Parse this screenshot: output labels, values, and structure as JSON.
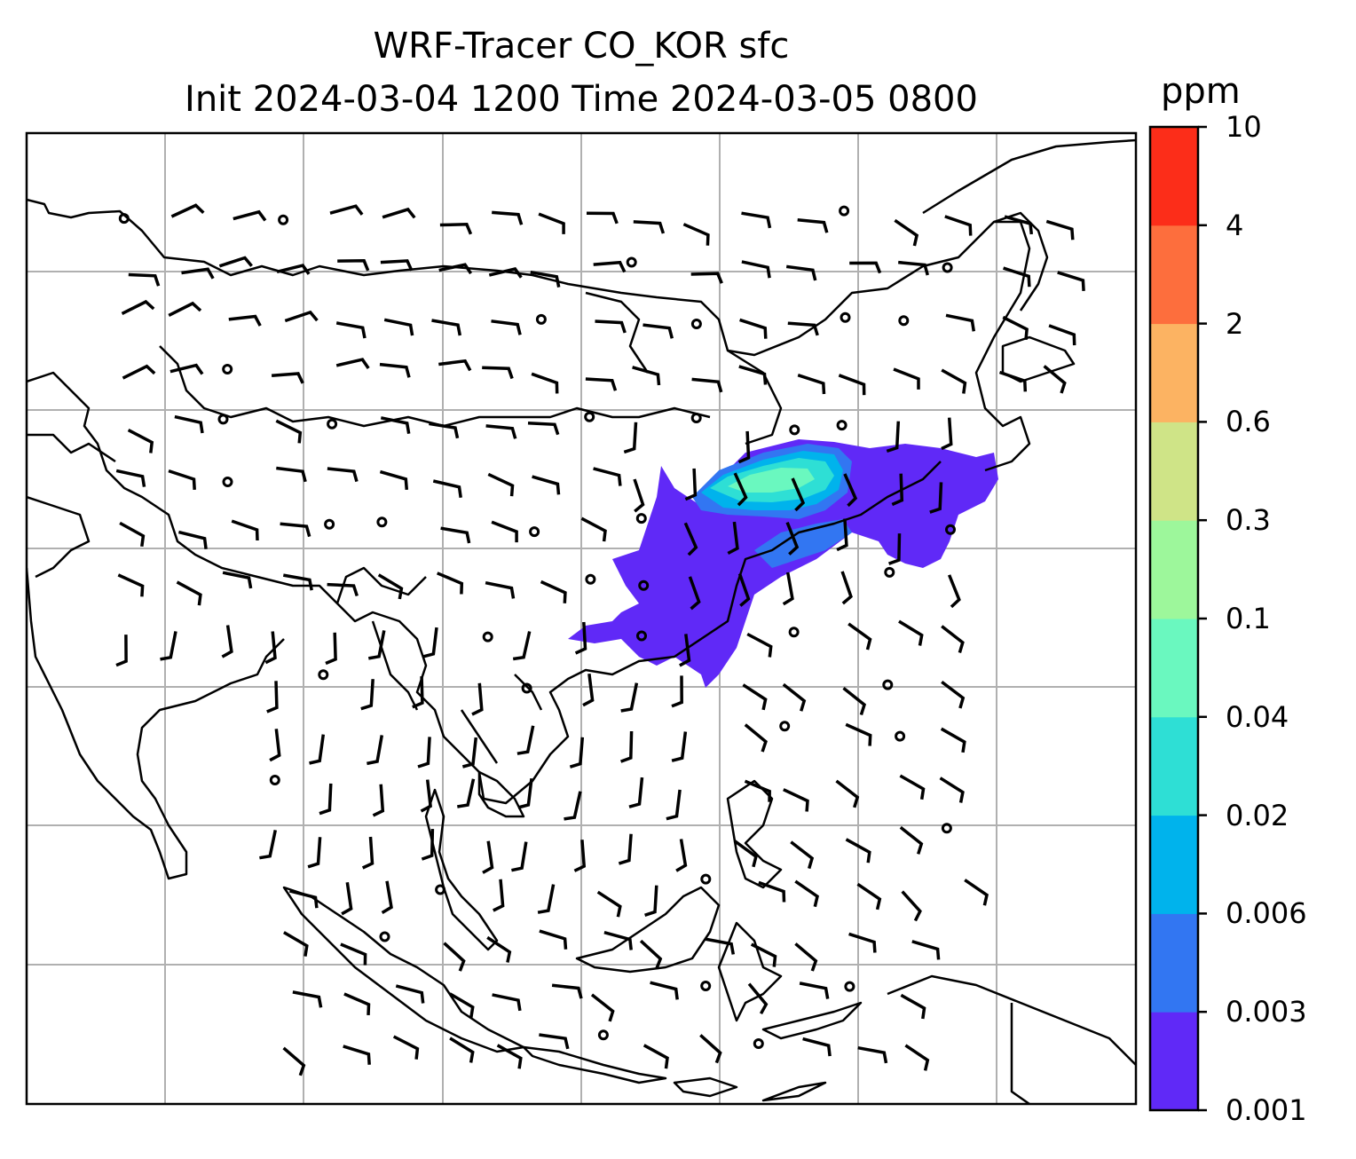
{
  "title": {
    "line1": "WRF-Tracer CO_KOR sfc",
    "line2": "Init 2024-03-04 1200 Time 2024-03-05 0800"
  },
  "colorbar": {
    "unit": "ppm",
    "levels": [
      "0.001",
      "0.003",
      "0.006",
      "0.02",
      "0.04",
      "0.1",
      "0.3",
      "0.6",
      "2",
      "4",
      "10"
    ],
    "colors": [
      "#6029f7",
      "#3276f2",
      "#00b3ec",
      "#2edfd5",
      "#6af8bf",
      "#9df79b",
      "#cfe487",
      "#fcb362",
      "#fd6e3d",
      "#fc2d19"
    ]
  },
  "map": {
    "gridlines": true,
    "features": [
      "coastline-icon",
      "country-border-icon",
      "wind-barb-icon",
      "calm-circle-icon",
      "tracer-plume"
    ]
  }
}
